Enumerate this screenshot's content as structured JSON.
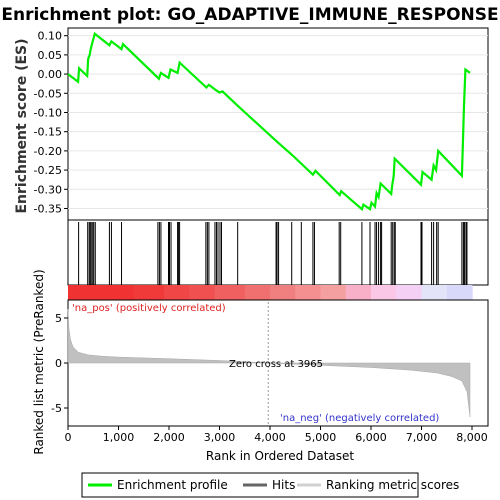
{
  "chart_data": {
    "type": "line",
    "title": "Enrichment plot: GO_ADAPTIVE_IMMUNE_RESPONSE",
    "es_panel": {
      "ylabel": "Enrichment score (ES)",
      "ylim": [
        -0.38,
        0.12
      ],
      "yticks": [
        "0.10",
        "0.05",
        "0.00",
        "-0.05",
        "-0.10",
        "-0.15",
        "-0.20",
        "-0.25",
        "-0.30",
        "-0.35"
      ],
      "ytick_values": [
        0.1,
        0.05,
        0.0,
        -0.05,
        -0.1,
        -0.15,
        -0.2,
        -0.25,
        -0.3,
        -0.35
      ],
      "series_name": "Enrichment profile",
      "color": "#00ee00",
      "points": [
        [
          0,
          0.0
        ],
        [
          200,
          -0.02
        ],
        [
          220,
          0.015
        ],
        [
          380,
          -0.005
        ],
        [
          400,
          0.04
        ],
        [
          430,
          0.05
        ],
        [
          450,
          0.065
        ],
        [
          490,
          0.085
        ],
        [
          530,
          0.105
        ],
        [
          820,
          0.075
        ],
        [
          860,
          0.085
        ],
        [
          1060,
          0.065
        ],
        [
          1090,
          0.078
        ],
        [
          1800,
          -0.012
        ],
        [
          1840,
          0.003
        ],
        [
          1990,
          -0.01
        ],
        [
          2030,
          0.012
        ],
        [
          2170,
          0.003
        ],
        [
          2210,
          0.03
        ],
        [
          2740,
          -0.035
        ],
        [
          2790,
          -0.028
        ],
        [
          2930,
          -0.042
        ],
        [
          3000,
          -0.048
        ],
        [
          3060,
          -0.045
        ],
        [
          3380,
          -0.085
        ],
        [
          4130,
          -0.175
        ],
        [
          4450,
          -0.212
        ],
        [
          4850,
          -0.262
        ],
        [
          4900,
          -0.252
        ],
        [
          5380,
          -0.315
        ],
        [
          5410,
          -0.305
        ],
        [
          5820,
          -0.352
        ],
        [
          5850,
          -0.34
        ],
        [
          5980,
          -0.352
        ],
        [
          6010,
          -0.335
        ],
        [
          6080,
          -0.345
        ],
        [
          6110,
          -0.31
        ],
        [
          6150,
          -0.32
        ],
        [
          6190,
          -0.285
        ],
        [
          6400,
          -0.312
        ],
        [
          6420,
          -0.29
        ],
        [
          6450,
          -0.265
        ],
        [
          6470,
          -0.22
        ],
        [
          6990,
          -0.288
        ],
        [
          7020,
          -0.255
        ],
        [
          7200,
          -0.275
        ],
        [
          7240,
          -0.238
        ],
        [
          7290,
          -0.25
        ],
        [
          7330,
          -0.2
        ],
        [
          7800,
          -0.265
        ],
        [
          7820,
          -0.18
        ],
        [
          7840,
          -0.09
        ],
        [
          7870,
          0.012
        ],
        [
          7960,
          0.003
        ]
      ]
    },
    "hits": {
      "series_name": "Hits",
      "positions": [
        210,
        390,
        420,
        440,
        460,
        490,
        510,
        540,
        820,
        860,
        1060,
        1780,
        1810,
        1840,
        1990,
        2010,
        2040,
        2170,
        2190,
        2210,
        2730,
        2760,
        2790,
        2910,
        2940,
        2970,
        3010,
        3040,
        3360,
        4120,
        4140,
        4170,
        4430,
        4620,
        4850,
        4880,
        5370,
        5400,
        5820,
        5980,
        6080,
        6110,
        6150,
        6190,
        6210,
        6400,
        6430,
        6460,
        6480,
        6990,
        7010,
        7200,
        7240,
        7300,
        7330,
        7800,
        7830,
        7850,
        7880,
        7900
      ]
    },
    "heatmap_bar": {
      "colors": [
        "#f03232",
        "#f03a3a",
        "#f04646",
        "#f05050",
        "#f06060",
        "#f07070",
        "#f08080",
        "#f49090",
        "#f5a0a0",
        "#f8b0c8",
        "#fac8e6",
        "#f4d0f4",
        "#e4e4f8",
        "#d8d8fa",
        "#c8c8fa",
        "#b4b4f8",
        "#a0a0f4",
        "#8c8cf4",
        "#7070f0",
        "#5050ec",
        "#3030e0"
      ],
      "segment_lengths": [
        1300,
        600,
        500,
        500,
        600,
        500,
        500,
        500,
        500,
        500,
        500,
        500,
        500,
        500,
        400,
        300,
        300,
        300,
        300,
        300,
        200
      ]
    },
    "rank_panel": {
      "ylabel": "Ranked list metric (PreRanked)",
      "xlabel": "Rank in Ordered Dataset",
      "ylim": [
        -7,
        7
      ],
      "yticks": [
        "5",
        "0",
        "-5"
      ],
      "ytick_values": [
        5,
        0,
        -5
      ],
      "xticks": [
        "0",
        "1,000",
        "2,000",
        "3,000",
        "4,000",
        "5,000",
        "6,000",
        "7,000",
        "8,000"
      ],
      "xtick_values": [
        0,
        1000,
        2000,
        3000,
        4000,
        5000,
        6000,
        7000,
        8000
      ],
      "xlim": [
        0,
        8000
      ],
      "series_name": "Ranking metric scores",
      "metric_points": [
        [
          0,
          6.0
        ],
        [
          20,
          3.8
        ],
        [
          50,
          2.6
        ],
        [
          100,
          1.8
        ],
        [
          200,
          1.2
        ],
        [
          400,
          0.9
        ],
        [
          700,
          0.75
        ],
        [
          1000,
          0.65
        ],
        [
          2000,
          0.48
        ],
        [
          3000,
          0.28
        ],
        [
          3965,
          0.0
        ],
        [
          5000,
          -0.25
        ],
        [
          6000,
          -0.5
        ],
        [
          6800,
          -0.8
        ],
        [
          7300,
          -1.1
        ],
        [
          7600,
          -1.5
        ],
        [
          7800,
          -2.0
        ],
        [
          7900,
          -3.2
        ],
        [
          7960,
          -6.0
        ]
      ],
      "zero_cross_label": "Zero cross at 3965",
      "zero_cross": 3965,
      "pos_label": "'na_pos' (positively correlated)",
      "neg_label": "'na_neg' (negatively correlated)"
    },
    "legend": [
      "Enrichment profile",
      "Hits",
      "Ranking metric scores"
    ]
  }
}
